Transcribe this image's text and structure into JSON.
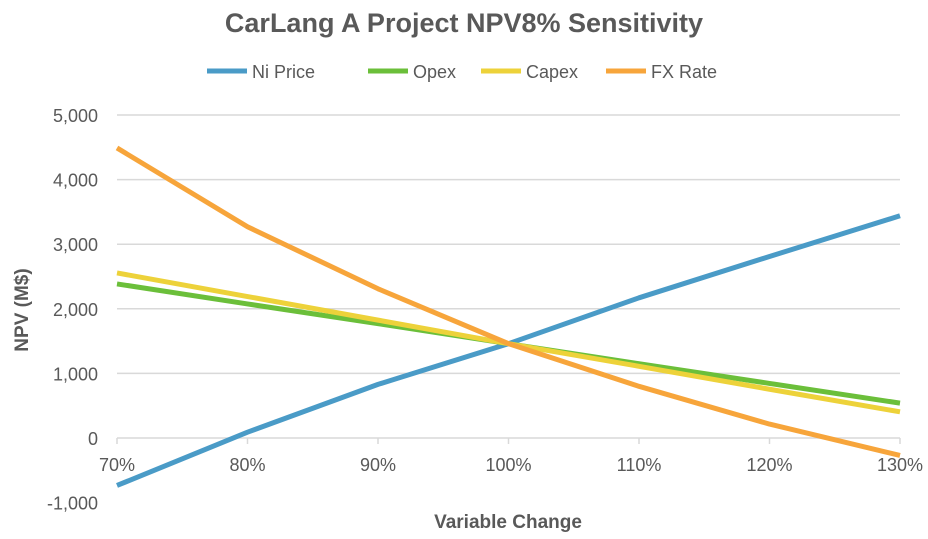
{
  "chart_data": {
    "type": "line",
    "title": "CarLang A Project NPV8% Sensitivity",
    "xlabel": "Variable Change",
    "ylabel": "NPV (M$)",
    "categories": [
      "70%",
      "80%",
      "90%",
      "100%",
      "110%",
      "120%",
      "130%"
    ],
    "ylim": [
      -1000,
      5000
    ],
    "yticks": [
      -1000,
      0,
      1000,
      2000,
      3000,
      4000,
      5000
    ],
    "ytick_labels": [
      "-1,000",
      "0",
      "1,000",
      "2,000",
      "3,000",
      "4,000",
      "5,000"
    ],
    "grid": true,
    "legend_position": "top",
    "series": [
      {
        "name": "Ni Price",
        "color": "#4A9BC7",
        "values": [
          -735,
          90,
          830,
          1460,
          2170,
          2810,
          3440
        ]
      },
      {
        "name": "Opex",
        "color": "#6BBF3A",
        "values": [
          2385,
          2075,
          1770,
          1460,
          1150,
          845,
          540
        ]
      },
      {
        "name": "Capex",
        "color": "#EDD23A",
        "values": [
          2555,
          2190,
          1825,
          1460,
          1110,
          755,
          405
        ]
      },
      {
        "name": "FX Rate",
        "color": "#F7A53B",
        "values": [
          4490,
          3270,
          2310,
          1460,
          800,
          215,
          -270
        ]
      }
    ]
  }
}
